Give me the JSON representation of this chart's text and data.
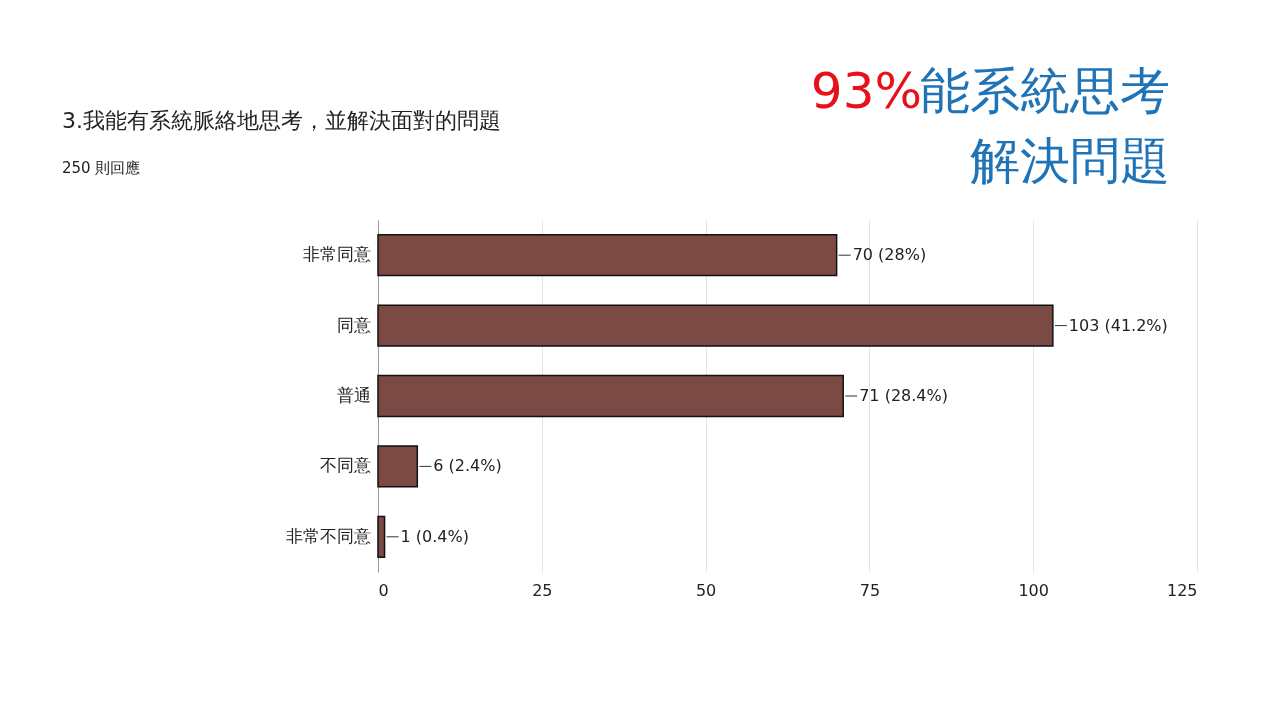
{
  "chart_data": {
    "type": "bar",
    "orientation": "horizontal",
    "title": "3.我能有系統脈絡地思考，並解決面對的問題",
    "subtitle": "250 則回應",
    "annotations": [
      "93%",
      "能系統思考",
      "解決問題"
    ],
    "categories": [
      "非常同意",
      "同意",
      "普通",
      "不同意",
      "非常不同意"
    ],
    "values": [
      70,
      103,
      71,
      6,
      1
    ],
    "value_labels": [
      "70 (28%)",
      "103 (41.2%)",
      "71 (28.4%)",
      "6 (2.4%)",
      "1 (0.4%)"
    ],
    "color": "#7b4a45",
    "xlim": [
      0,
      125
    ],
    "xticks": [
      0,
      25,
      50,
      75,
      100,
      125
    ],
    "grid": "x"
  }
}
